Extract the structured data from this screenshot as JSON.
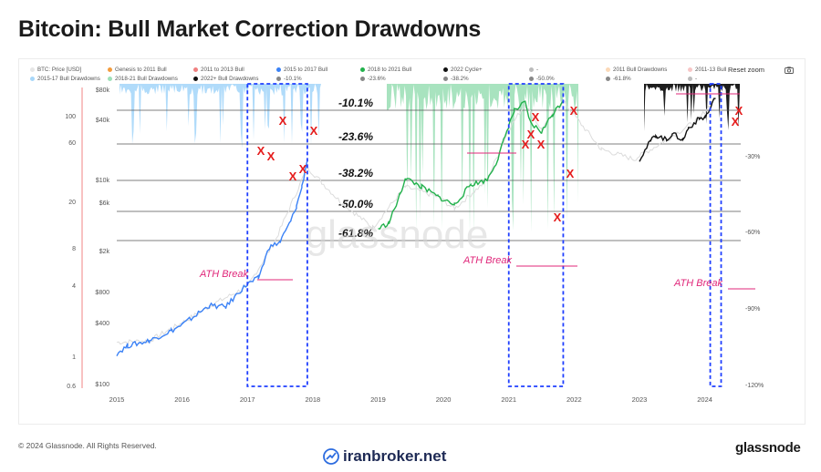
{
  "title": "Bitcoin: Bull Market Correction Drawdowns",
  "toolbar": {
    "reset_label": "Reset zoom",
    "camera_icon": "camera-icon"
  },
  "legend": [
    {
      "label": "BTC: Price [USD]",
      "color": "#e6e6e6"
    },
    {
      "label": "Genesis to 2011 Bull",
      "color": "#f39c3d"
    },
    {
      "label": "2011 to 2013 Bull",
      "color": "#f08080"
    },
    {
      "label": "2015 to 2017 Bull",
      "color": "#3b82f6"
    },
    {
      "label": "2018 to 2021 Bull",
      "color": "#22b14c"
    },
    {
      "label": "2022 Cycle+",
      "color": "#111111"
    },
    {
      "label": "-",
      "color": "#bbbbbb"
    },
    {
      "label": "2011 Bull Drawdowns",
      "color": "#fbd9b8"
    },
    {
      "label": "2011-13 Bull",
      "color": "#f7c6c6"
    },
    {
      "label": "2015-17 Bull Drawdowns",
      "color": "#a7d7f9"
    },
    {
      "label": "2018-21 Bull Drawdowns",
      "color": "#9fe0b8"
    },
    {
      "label": "2022+ Bull Drawdowns",
      "color": "#111111"
    },
    {
      "label": "-10.1%",
      "color": "#888888"
    },
    {
      "label": "-23.6%",
      "color": "#888888"
    },
    {
      "label": "-38.2%",
      "color": "#888888"
    },
    {
      "label": "-50.0%",
      "color": "#888888"
    },
    {
      "label": "-61.8%",
      "color": "#888888"
    },
    {
      "label": "-",
      "color": "#bbbbbb"
    }
  ],
  "chart_data": {
    "type": "line",
    "x_ticks": [
      "2015",
      "2016",
      "2017",
      "2018",
      "2019",
      "2020",
      "2021",
      "2022",
      "2023",
      "2024"
    ],
    "y_axis_price": {
      "scale": "log",
      "ticks": [
        "$80k",
        "$40k",
        "$10k",
        "$6k",
        "$2k",
        "$800",
        "$400",
        "$100"
      ]
    },
    "y_axis_far_left": {
      "ticks": [
        "100",
        "60",
        "20",
        "8",
        "4",
        "1",
        "0.6"
      ]
    },
    "y_axis_drawdown": {
      "ticks": [
        "-30%",
        "-60%",
        "-90%",
        "-120%"
      ]
    },
    "retracement_levels": [
      {
        "label": "-10.1%",
        "value": -10.1
      },
      {
        "label": "-23.6%",
        "value": -23.6
      },
      {
        "label": "-38.2%",
        "value": -38.2
      },
      {
        "label": "-50.0%",
        "value": -50.0
      },
      {
        "label": "-61.8%",
        "value": -61.8
      }
    ],
    "series": [
      {
        "name": "BTC: Price [USD]",
        "color": "#dcdcdc",
        "points": [
          [
            "2015-01",
            270
          ],
          [
            "2015-07",
            280
          ],
          [
            "2016-01",
            420
          ],
          [
            "2016-07",
            650
          ],
          [
            "2017-01",
            950
          ],
          [
            "2017-06",
            2600
          ],
          [
            "2017-12",
            14000
          ],
          [
            "2018-06",
            6500
          ],
          [
            "2018-12",
            3600
          ],
          [
            "2019-06",
            9000
          ],
          [
            "2019-12",
            7200
          ],
          [
            "2020-03",
            5500
          ],
          [
            "2020-09",
            10500
          ],
          [
            "2021-01",
            33000
          ],
          [
            "2021-04",
            58000
          ],
          [
            "2021-07",
            33000
          ],
          [
            "2021-11",
            62000
          ],
          [
            "2022-06",
            21000
          ],
          [
            "2022-12",
            16800
          ],
          [
            "2023-06",
            26000
          ],
          [
            "2023-12",
            42000
          ],
          [
            "2024-03",
            68000
          ]
        ]
      },
      {
        "name": "2015 to 2017 Bull",
        "color": "#3b82f6",
        "points": [
          [
            "2015-01",
            210
          ],
          [
            "2015-03",
            250
          ],
          [
            "2015-07",
            280
          ],
          [
            "2015-11",
            350
          ],
          [
            "2016-01",
            400
          ],
          [
            "2016-06",
            620
          ],
          [
            "2016-09",
            600
          ],
          [
            "2016-12",
            900
          ],
          [
            "2017-01",
            1000
          ],
          [
            "2017-03",
            1150
          ],
          [
            "2017-05",
            2300
          ],
          [
            "2017-07",
            2600
          ],
          [
            "2017-09",
            4200
          ],
          [
            "2017-10",
            5800
          ],
          [
            "2017-11",
            9000
          ],
          [
            "2017-12",
            17000
          ]
        ]
      },
      {
        "name": "2018 to 2021 Bull",
        "color": "#22b14c",
        "points": [
          [
            "2019-01",
            3500
          ],
          [
            "2019-03",
            4000
          ],
          [
            "2019-05",
            7500
          ],
          [
            "2019-06",
            11000
          ],
          [
            "2019-09",
            9000
          ],
          [
            "2019-12",
            7200
          ],
          [
            "2020-03",
            6000
          ],
          [
            "2020-06",
            9500
          ],
          [
            "2020-09",
            10500
          ],
          [
            "2020-11",
            17000
          ],
          [
            "2020-12",
            25000
          ],
          [
            "2021-01",
            36000
          ],
          [
            "2021-02",
            50000
          ],
          [
            "2021-04",
            60000
          ],
          [
            "2021-05",
            38000
          ],
          [
            "2021-07",
            31000
          ],
          [
            "2021-09",
            46000
          ],
          [
            "2021-11",
            64000
          ]
        ]
      },
      {
        "name": "2022 Cycle+",
        "color": "#111111",
        "points": [
          [
            "2023-01",
            16800
          ],
          [
            "2023-03",
            25000
          ],
          [
            "2023-04",
            29000
          ],
          [
            "2023-06",
            26000
          ],
          [
            "2023-07",
            30000
          ],
          [
            "2023-09",
            26000
          ],
          [
            "2023-10",
            34000
          ],
          [
            "2023-12",
            42000
          ],
          [
            "2024-01",
            43000
          ],
          [
            "2024-02",
            52000
          ],
          [
            "2024-03",
            70000
          ]
        ]
      }
    ],
    "highlight_windows": [
      {
        "from": "2017-01",
        "to": "2017-12"
      },
      {
        "from": "2021-01",
        "to": "2021-11"
      },
      {
        "from": "2024-02",
        "to": "2024-04"
      }
    ],
    "annotations": [
      "ATH Break",
      "ATH Break",
      "ATH Break"
    ],
    "corrections": {
      "2015-17": [
        "2017-03",
        "2017-05",
        "2017-06",
        "2017-09",
        "2017-11",
        "2017-12"
      ],
      "2018-21": [
        "2021-01",
        "2021-03",
        "2021-04",
        "2021-05",
        "2021-09",
        "2021-10",
        "2021-11"
      ],
      "2022+": [
        "2024-03",
        "2024-04"
      ]
    },
    "watermark": "glassnode"
  },
  "footer": {
    "copyright": "© 2024 Glassnode. All Rights Reserved.",
    "brand": "iranbroker.net",
    "logo": "glassnode"
  }
}
